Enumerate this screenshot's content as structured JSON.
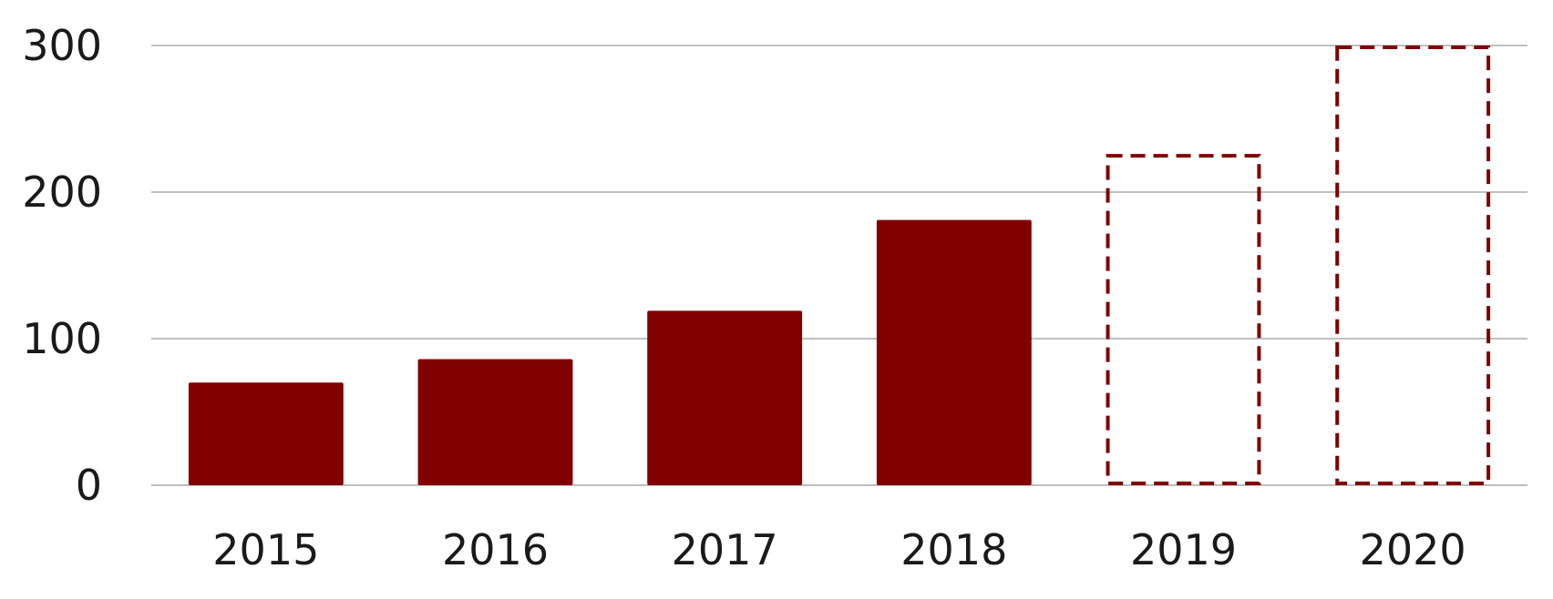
{
  "chart_data": {
    "type": "bar",
    "title": "",
    "xlabel": "",
    "ylabel": "",
    "categories": [
      "2015",
      "2016",
      "2017",
      "2018",
      "2019",
      "2020"
    ],
    "values": [
      70,
      86,
      119,
      181,
      226,
      300
    ],
    "projected": [
      false,
      false,
      false,
      false,
      true,
      true
    ],
    "ylim": [
      0,
      300
    ],
    "yticks": [
      0,
      100,
      200,
      300
    ],
    "ytick_labels": [
      "0",
      "100",
      "200",
      "300"
    ],
    "grid": true,
    "legend": "none",
    "colors": {
      "bar": "#800000",
      "projected_outline": "#800000",
      "grid": "#9a9a9a",
      "axis": "#bdbdbd"
    }
  }
}
